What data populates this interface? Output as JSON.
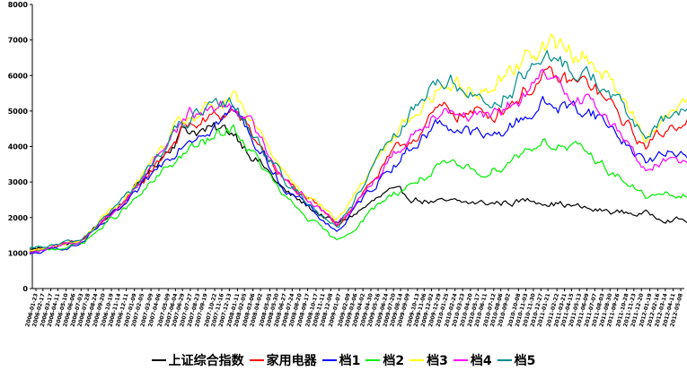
{
  "chart_data": {
    "type": "line",
    "title": "",
    "xlabel": "",
    "ylabel": "",
    "ylim": [
      0,
      8000
    ],
    "yticks": [
      0,
      1000,
      2000,
      3000,
      4000,
      5000,
      6000,
      7000,
      8000
    ],
    "grid": false,
    "legend_position": "bottom",
    "x_dates": [
      "2006-01-01",
      "2006-07-01",
      "2007-01-01",
      "2007-07-01",
      "2008-01-01",
      "2008-07-01",
      "2009-01-01",
      "2009-07-01",
      "2010-01-01",
      "2010-07-01",
      "2011-01-01",
      "2011-07-01",
      "2012-01-01",
      "2012-06-01"
    ],
    "xticks": [
      "2006-01-23",
      "2006-02-17",
      "2006-03-17",
      "2006-04-11",
      "2006-05-10",
      "2006-06-06",
      "2006-07-03",
      "2006-07-28",
      "2006-08-24",
      "2006-09-20",
      "2006-10-19",
      "2006-11-14",
      "2006-12-11",
      "2007-01-09",
      "2007-02-05",
      "2007-03-09",
      "2007-04-06",
      "2007-05-09",
      "2007-06-04",
      "2007-06-29",
      "2007-07-27",
      "2007-08-23",
      "2007-09-19",
      "2007-10-22",
      "2007-11-16",
      "2007-12-13",
      "2008-01-11",
      "2008-02-05",
      "2008-03-06",
      "2008-04-02",
      "2008-05-05",
      "2008-05-30",
      "2008-06-27",
      "2008-07-24",
      "2008-08-20",
      "2008-09-17",
      "2008-10-17",
      "2008-11-11",
      "2008-12-08",
      "2009-01-07",
      "2009-02-09",
      "2009-03-06",
      "2009-04-02",
      "2009-04-30",
      "2009-05-26",
      "2009-06-24",
      "2009-07-20",
      "2009-08-14",
      "2009-09-09",
      "2009-10-13",
      "2009-11-06",
      "2009-12-02",
      "2009-12-29",
      "2010-01-25",
      "2010-02-24",
      "2010-03-23",
      "2010-04-20",
      "2010-05-17",
      "2010-06-11",
      "2010-07-12",
      "2010-08-06",
      "2010-09-02",
      "2010-10-08",
      "2010-11-03",
      "2010-11-30",
      "2010-12-27",
      "2011-01-21",
      "2011-02-22",
      "2011-03-21",
      "2011-04-15",
      "2011-05-13",
      "2011-06-09",
      "2011-07-07",
      "2011-08-03",
      "2011-08-30",
      "2011-09-26",
      "2011-10-28",
      "2011-11-23",
      "2011-12-20",
      "2012-01-19",
      "2012-02-16",
      "2012-03-14",
      "2012-04-11",
      "2012-05-08"
    ],
    "series": [
      {
        "name": "上证综合指数",
        "color": "#000000",
        "values": [
          1100,
          1300,
          2700,
          4500,
          4400,
          2700,
          1800,
          2700,
          2400,
          2400,
          2500,
          2200,
          2100,
          1900
        ]
      },
      {
        "name": "家用电器",
        "color": "#ff0000",
        "values": [
          1050,
          1320,
          2600,
          4500,
          5000,
          3000,
          1800,
          3600,
          5000,
          4900,
          5900,
          5700,
          4000,
          4900
        ]
      },
      {
        "name": "档1",
        "color": "#0000ff",
        "values": [
          950,
          1250,
          2500,
          4200,
          5000,
          2800,
          1600,
          3400,
          4700,
          4200,
          5200,
          5000,
          3600,
          3900
        ]
      },
      {
        "name": "档2",
        "color": "#00ee00",
        "values": [
          1000,
          1250,
          2400,
          3800,
          4500,
          2500,
          1300,
          2600,
          3400,
          3300,
          4200,
          3700,
          2600,
          2600
        ]
      },
      {
        "name": "档3",
        "color": "#ffff00",
        "values": [
          1050,
          1350,
          2800,
          4700,
          5300,
          3300,
          1900,
          4100,
          5700,
          5700,
          6900,
          6500,
          4400,
          5200
        ]
      },
      {
        "name": "档4",
        "color": "#ff00ff",
        "values": [
          1000,
          1330,
          2700,
          4800,
          5300,
          3100,
          1800,
          3600,
          5200,
          4700,
          5900,
          5300,
          3400,
          3700
        ]
      },
      {
        "name": "档5",
        "color": "#008b8b",
        "values": [
          1100,
          1350,
          2750,
          4700,
          5200,
          3000,
          1700,
          4000,
          6000,
          5200,
          6400,
          6000,
          4300,
          5100
        ]
      }
    ]
  }
}
